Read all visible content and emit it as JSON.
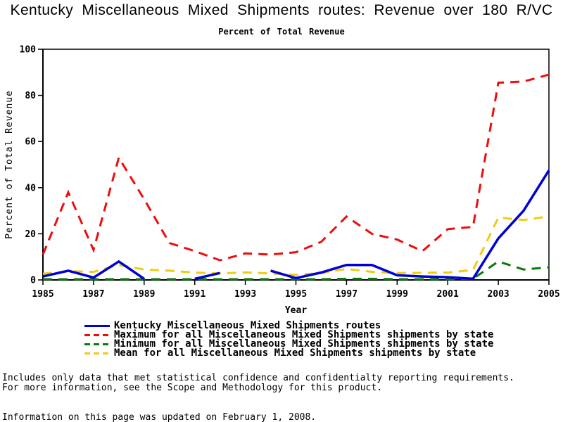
{
  "page": {
    "title": "Kentucky Miscellaneous Mixed Shipments routes: Revenue over 180 R/VC",
    "subtitle": "Percent of Total Revenue"
  },
  "footer": {
    "line1": "Includes only data that met statistical confidence and confidentialty reporting requirements.",
    "line2": "For more information, see the Scope and Methodology for this product.",
    "updated": "Information on this page was updated on February 1, 2008."
  },
  "chart_data": {
    "type": "line",
    "title": "Kentucky Miscellaneous Mixed Shipments routes: Revenue over 180 R/VC",
    "subtitle": "Percent of Total Revenue",
    "xlabel": "Year",
    "ylabel": "Percent of Total Revenue",
    "xlim": [
      1985,
      2005
    ],
    "ylim": [
      0,
      100
    ],
    "xticks": [
      1985,
      1987,
      1989,
      1991,
      1993,
      1995,
      1997,
      1999,
      2001,
      2003,
      2005
    ],
    "yticks": [
      0,
      20,
      40,
      60,
      80,
      100
    ],
    "grid": false,
    "legend_position": "bottom",
    "x": [
      1985,
      1986,
      1987,
      1988,
      1989,
      1990,
      1991,
      1992,
      1993,
      1994,
      1995,
      1996,
      1997,
      1998,
      1999,
      2000,
      2001,
      2002,
      2003,
      2004,
      2005
    ],
    "series": [
      {
        "name": "kentucky-routes",
        "label": "Kentucky Miscellaneous Mixed Shipments routes",
        "color": "#0101d6",
        "style": "solid",
        "values": [
          1.5,
          4,
          1,
          8,
          0.5,
          null,
          0.5,
          3,
          null,
          4,
          0.8,
          3.2,
          6.5,
          6.5,
          2,
          1.5,
          1.2,
          0.5,
          18,
          30,
          47.5
        ]
      },
      {
        "name": "maximum-by-state",
        "label": "Maximum for all Miscellaneous Mixed Shipments shipments by state",
        "color": "#ee0c0c",
        "style": "dashed",
        "values": [
          11,
          38,
          13,
          53,
          35,
          16,
          12.5,
          8.5,
          11.5,
          11,
          12,
          16.5,
          27.5,
          20,
          17.5,
          12.5,
          22,
          23,
          85.5,
          86,
          89
        ]
      },
      {
        "name": "minimum-by-state",
        "label": "Minimum for all Miscellaneous Mixed Shipments shipments by state",
        "color": "#077a07",
        "style": "dashed",
        "values": [
          0.3,
          0.3,
          0.3,
          0.3,
          0.3,
          0.3,
          0.3,
          0.3,
          0.3,
          0.3,
          0.3,
          0.3,
          0.5,
          0.5,
          0.3,
          0.3,
          0.3,
          0.5,
          8,
          4.5,
          5.5
        ]
      },
      {
        "name": "mean-by-state",
        "label": "Mean for all Miscellaneous Mixed Shipments shipments by state",
        "color": "#f0cc11",
        "style": "dashed",
        "values": [
          2.7,
          3.8,
          3.5,
          6.5,
          4.5,
          4,
          3.2,
          2.8,
          3.3,
          2.8,
          2.2,
          3,
          4.8,
          3.5,
          3,
          3.1,
          3.2,
          4.3,
          27,
          26,
          27.5
        ]
      }
    ]
  }
}
